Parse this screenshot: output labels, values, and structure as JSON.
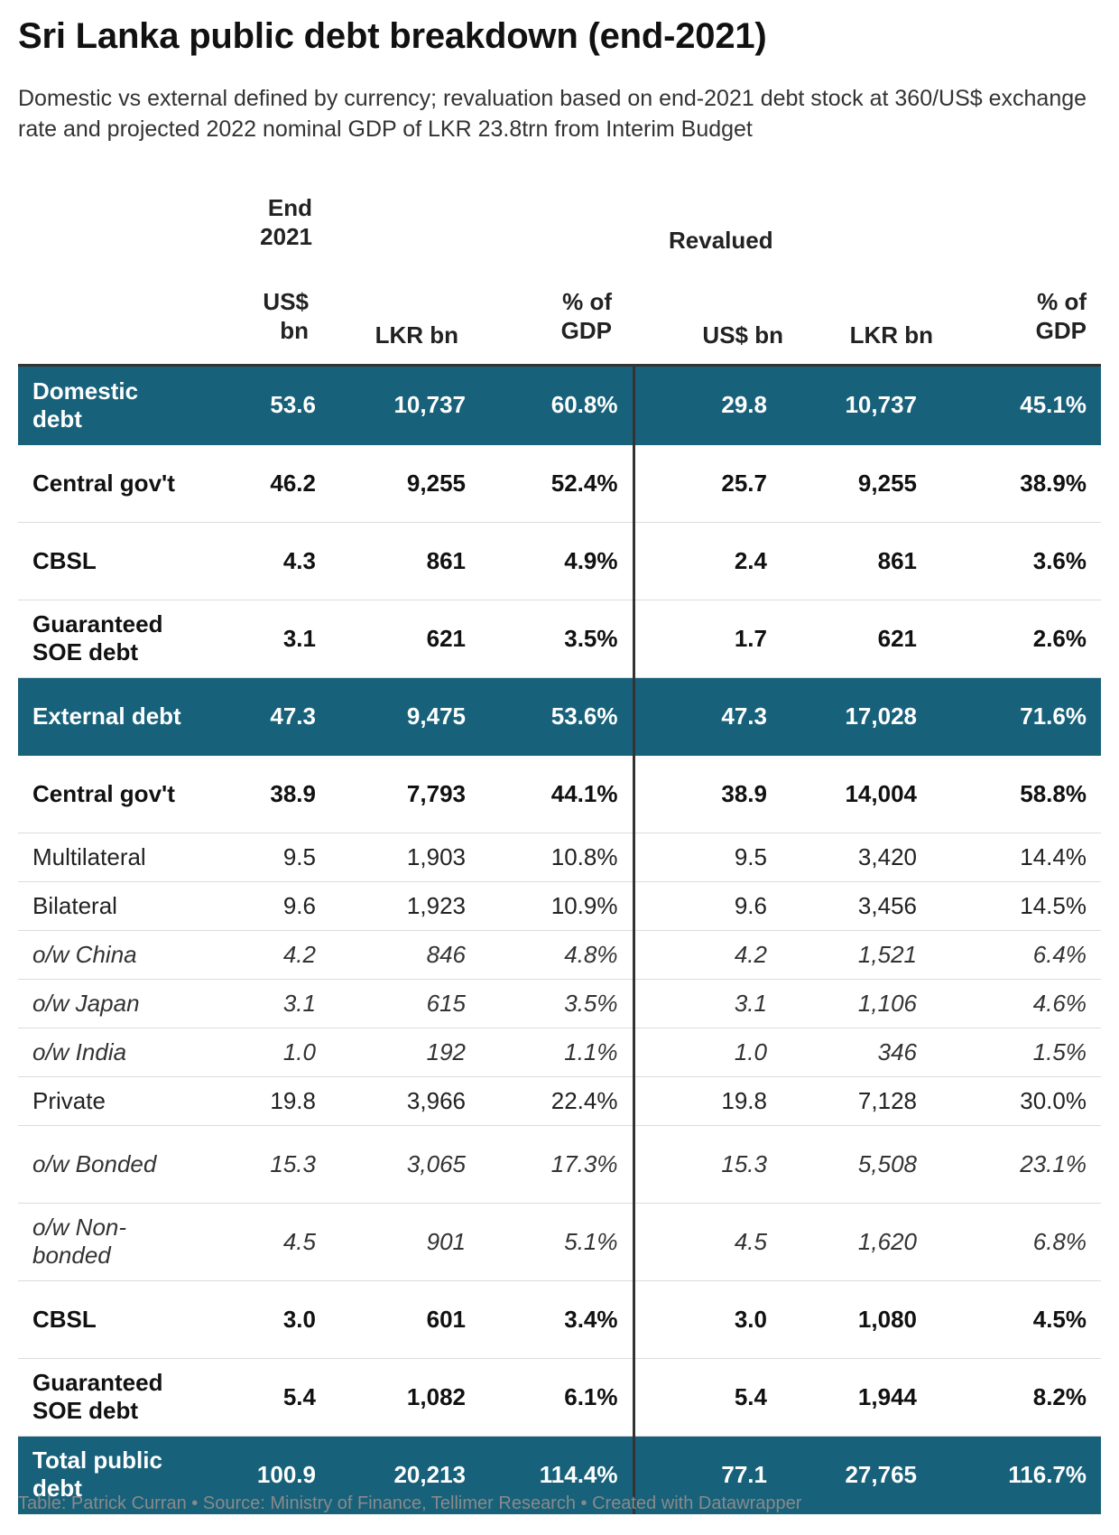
{
  "title": "Sri Lanka public debt breakdown (end-2021)",
  "subtitle": "Domestic vs external defined by currency; revaluation based on end-2021 debt stock at 360/US$ exchange rate and projected 2022 nominal GDP of LKR 23.8trn from Interim Budget",
  "footer": "Table: Patrick Curran • Source: Ministry of Finance, Tellimer Research • Created with Datawrapper",
  "colors": {
    "section_bg": "#17617a",
    "section_text": "#ffffff",
    "divider": "#333333"
  },
  "chart_data": {
    "type": "table",
    "group_headers": {
      "end2021": "End 2021",
      "revalued": "Revalued"
    },
    "columns": [
      "US$ bn",
      "LKR bn",
      "% of GDP",
      "US$ bn",
      "LKR bn",
      "% of GDP"
    ],
    "rows": [
      {
        "label": "Domestic debt",
        "style": "section",
        "values": [
          "53.6",
          "10,737",
          "60.8%",
          "29.8",
          "10,737",
          "45.1%"
        ]
      },
      {
        "label": "Central gov't",
        "style": "bold",
        "values": [
          "46.2",
          "9,255",
          "52.4%",
          "25.7",
          "9,255",
          "38.9%"
        ]
      },
      {
        "label": "CBSL",
        "style": "bold",
        "values": [
          "4.3",
          "861",
          "4.9%",
          "2.4",
          "861",
          "3.6%"
        ]
      },
      {
        "label": "Guaranteed SOE debt",
        "style": "bold",
        "values": [
          "3.1",
          "621",
          "3.5%",
          "1.7",
          "621",
          "2.6%"
        ]
      },
      {
        "label": "External debt",
        "style": "section",
        "values": [
          "47.3",
          "9,475",
          "53.6%",
          "47.3",
          "17,028",
          "71.6%"
        ]
      },
      {
        "label": "Central gov't",
        "style": "bold",
        "values": [
          "38.9",
          "7,793",
          "44.1%",
          "38.9",
          "14,004",
          "58.8%"
        ]
      },
      {
        "label": "Multilateral",
        "style": "normal",
        "values": [
          "9.5",
          "1,903",
          "10.8%",
          "9.5",
          "3,420",
          "14.4%"
        ]
      },
      {
        "label": "Bilateral",
        "style": "normal",
        "values": [
          "9.6",
          "1,923",
          "10.9%",
          "9.6",
          "3,456",
          "14.5%"
        ]
      },
      {
        "label": "o/w China",
        "style": "italic",
        "values": [
          "4.2",
          "846",
          "4.8%",
          "4.2",
          "1,521",
          "6.4%"
        ]
      },
      {
        "label": "o/w Japan",
        "style": "italic",
        "values": [
          "3.1",
          "615",
          "3.5%",
          "3.1",
          "1,106",
          "4.6%"
        ]
      },
      {
        "label": "o/w India",
        "style": "italic",
        "values": [
          "1.0",
          "192",
          "1.1%",
          "1.0",
          "346",
          "1.5%"
        ]
      },
      {
        "label": "Private",
        "style": "normal",
        "values": [
          "19.8",
          "3,966",
          "22.4%",
          "19.8",
          "7,128",
          "30.0%"
        ]
      },
      {
        "label": "o/w Bonded",
        "style": "italic",
        "values": [
          "15.3",
          "3,065",
          "17.3%",
          "15.3",
          "5,508",
          "23.1%"
        ]
      },
      {
        "label": "o/w Non-bonded",
        "style": "italic",
        "values": [
          "4.5",
          "901",
          "5.1%",
          "4.5",
          "1,620",
          "6.8%"
        ]
      },
      {
        "label": "CBSL",
        "style": "bold",
        "values": [
          "3.0",
          "601",
          "3.4%",
          "3.0",
          "1,080",
          "4.5%"
        ]
      },
      {
        "label": "Guaranteed SOE debt",
        "style": "bold",
        "values": [
          "5.4",
          "1,082",
          "6.1%",
          "5.4",
          "1,944",
          "8.2%"
        ]
      },
      {
        "label": "Total public debt",
        "style": "section",
        "values": [
          "100.9",
          "20,213",
          "114.4%",
          "77.1",
          "27,765",
          "116.7%"
        ]
      }
    ]
  }
}
